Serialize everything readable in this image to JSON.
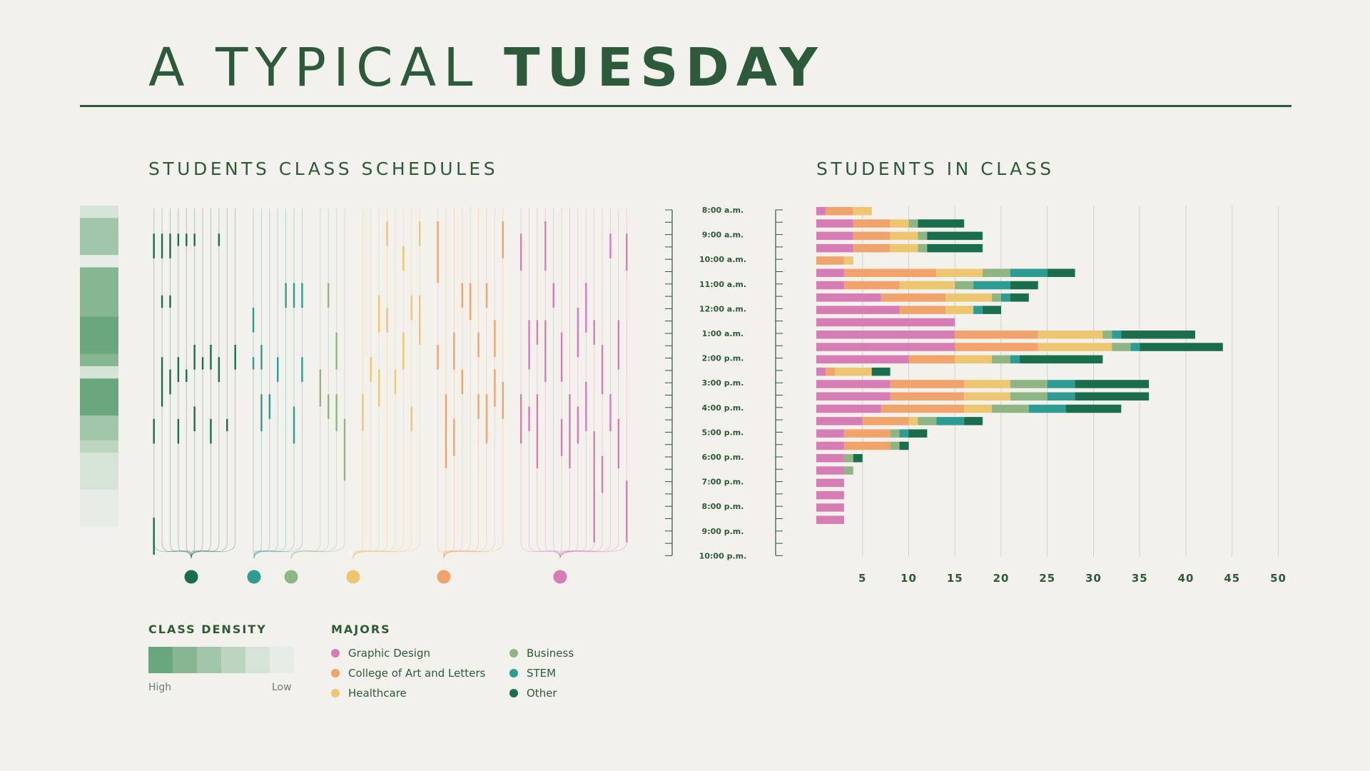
{
  "title": {
    "light": "A TYPICAL",
    "bold": "TUESDAY"
  },
  "sections": {
    "schedules": "STUDENTS CLASS SCHEDULES",
    "in_class": "STUDENTS IN CLASS"
  },
  "legend": {
    "density": {
      "title": "CLASS DENSITY",
      "high": "High",
      "low": "Low",
      "colors": [
        "#6aa67e",
        "#86b692",
        "#a2c6aa",
        "#bcd5c0",
        "#d5e4d6",
        "#e7ede6"
      ]
    },
    "majors": {
      "title": "MAJORS",
      "items": [
        {
          "label": "Graphic Design",
          "color": "#d67db6"
        },
        {
          "label": "College of Art and Letters",
          "color": "#f0a46c"
        },
        {
          "label": "Healthcare",
          "color": "#ecc670"
        },
        {
          "label": "Business",
          "color": "#8fb584"
        },
        {
          "label": "STEM",
          "color": "#2e9c92"
        },
        {
          "label": "Other",
          "color": "#1a6e4c"
        }
      ]
    }
  },
  "chart_data": [
    {
      "type": "bar",
      "orientation": "horizontal",
      "stacked": true,
      "title": "STUDENTS IN CLASS",
      "time_labels": [
        "8:00 a.m.",
        "9:00 a.m.",
        "10:00 a.m.",
        "11:00 a.m.",
        "12:00 a.m.",
        "1:00 a.m.",
        "2:00 p.m.",
        "3:00 p.m.",
        "4:00 p.m.",
        "5:00 p.m.",
        "6:00 p.m.",
        "7:00 p.m.",
        "8:00 p.m.",
        "9:00 p.m.",
        "10:00 p.m."
      ],
      "categories": [
        "8:00",
        "8:30",
        "9:00",
        "9:30",
        "10:00",
        "10:30",
        "11:00",
        "11:30",
        "12:00",
        "12:30",
        "1:00",
        "1:30",
        "2:00",
        "2:30",
        "3:00",
        "3:30",
        "4:00",
        "4:30",
        "5:00",
        "5:30",
        "6:00",
        "6:30",
        "7:00",
        "7:30",
        "8:00",
        "8:30"
      ],
      "series": [
        {
          "name": "Graphic Design",
          "color": "#d67db6",
          "values": [
            1,
            4,
            4,
            4,
            0,
            3,
            3,
            7,
            9,
            15,
            15,
            15,
            10,
            1,
            8,
            8,
            7,
            5,
            3,
            3,
            3,
            3,
            3,
            3,
            3,
            3
          ]
        },
        {
          "name": "College of Art and Letters",
          "color": "#f0a46c",
          "values": [
            3,
            4,
            4,
            4,
            3,
            10,
            6,
            7,
            5,
            0,
            9,
            9,
            5,
            1,
            8,
            8,
            9,
            5,
            5,
            5,
            0,
            0,
            0,
            0,
            0,
            0
          ]
        },
        {
          "name": "Healthcare",
          "color": "#ecc670",
          "values": [
            2,
            2,
            3,
            3,
            1,
            5,
            6,
            5,
            3,
            0,
            7,
            8,
            4,
            4,
            5,
            5,
            3,
            1,
            0,
            0,
            0,
            0,
            0,
            0,
            0,
            0
          ]
        },
        {
          "name": "Business",
          "color": "#8fb584",
          "values": [
            0,
            1,
            1,
            1,
            0,
            3,
            2,
            1,
            0,
            0,
            1,
            2,
            2,
            0,
            4,
            4,
            4,
            2,
            1,
            1,
            1,
            1,
            0,
            0,
            0,
            0
          ]
        },
        {
          "name": "STEM",
          "color": "#2e9c92",
          "values": [
            0,
            0,
            0,
            0,
            0,
            4,
            4,
            1,
            1,
            0,
            1,
            1,
            1,
            0,
            3,
            3,
            4,
            3,
            1,
            0,
            0,
            0,
            0,
            0,
            0,
            0
          ]
        },
        {
          "name": "Other",
          "color": "#1a6e4c",
          "values": [
            0,
            5,
            6,
            6,
            0,
            3,
            3,
            2,
            2,
            0,
            8,
            9,
            9,
            2,
            8,
            8,
            6,
            2,
            2,
            1,
            1,
            0,
            0,
            0,
            0,
            0
          ]
        }
      ],
      "x_ticks": [
        5,
        10,
        15,
        20,
        25,
        30,
        35,
        40,
        45,
        50
      ],
      "xlim": [
        0,
        50
      ],
      "grid": true
    },
    {
      "type": "heatmap",
      "title": "STUDENTS CLASS SCHEDULES",
      "description_rows": "time slots 8:00 a.m. to 10:00 p.m., one column per student",
      "row_density": [
        2,
        4,
        4,
        4,
        1,
        5,
        5,
        5,
        5,
        6,
        6,
        6,
        5,
        2,
        6,
        6,
        6,
        4,
        4,
        3,
        2,
        2,
        2,
        1,
        1,
        1
      ],
      "groups": [
        {
          "name": "Other",
          "color": "#1a6e4c",
          "students": 11,
          "schedules": [
            [
              1,
              3,
              16,
              18,
              24,
              27
            ],
            [
              1,
              3,
              6,
              7,
              11,
              15
            ],
            [
              1,
              3,
              6,
              7,
              12,
              14
            ],
            [
              1,
              2,
              11,
              13,
              16,
              18
            ],
            [
              1,
              2,
              12,
              13
            ],
            [
              1,
              2,
              10,
              12,
              15,
              17
            ],
            [
              11,
              12
            ],
            [
              10,
              12,
              16,
              18
            ],
            [
              1,
              2,
              11,
              13
            ],
            [
              16,
              17
            ],
            [
              10,
              12
            ]
          ]
        },
        {
          "name": "STEM",
          "color": "#2e9c92",
          "students": 7,
          "schedules": [
            [
              7,
              9,
              11,
              12
            ],
            [
              10,
              12,
              14,
              17
            ],
            [
              14,
              16
            ],
            [
              11,
              13
            ],
            [
              5,
              7
            ],
            [
              5,
              7,
              15,
              18
            ],
            [
              5,
              7,
              11,
              13
            ]
          ]
        },
        {
          "name": "Business",
          "color": "#8fb584",
          "students": 4,
          "schedules": [
            [
              12,
              15
            ],
            [
              5,
              7,
              14,
              16
            ],
            [
              9,
              12,
              14,
              17
            ],
            [
              16,
              21
            ]
          ]
        },
        {
          "name": "Healthcare",
          "color": "#ecc670",
          "students": 8,
          "schedules": [
            [
              14,
              17
            ],
            [
              11,
              13
            ],
            [
              6,
              9,
              12,
              15
            ],
            [
              0,
              2,
              7,
              9
            ],
            [
              12,
              14
            ],
            [
              2,
              4,
              9,
              12
            ],
            [
              6,
              8,
              15,
              17
            ],
            [
              0,
              2,
              6,
              10
            ]
          ]
        },
        {
          "name": "College of Art and Letters",
          "color": "#f0a46c",
          "students": 9,
          "schedules": [
            [
              0,
              5,
              10,
              12
            ],
            [
              14,
              20
            ],
            [
              9,
              12,
              16,
              19
            ],
            [
              5,
              7,
              12,
              14
            ],
            [
              5,
              8
            ],
            [
              9,
              11,
              14,
              16
            ],
            [
              5,
              7,
              14,
              18
            ],
            [
              8,
              11,
              12,
              15
            ],
            [
              0,
              3,
              13,
              16
            ]
          ]
        },
        {
          "name": "Graphic Design",
          "color": "#d67db6",
          "students": 14,
          "schedules": [
            [
              1,
              4,
              14,
              18
            ],
            [
              8,
              12,
              15,
              17
            ],
            [
              8,
              10,
              14,
              20
            ],
            [
              0,
              4,
              8,
              13
            ],
            [
              5,
              7
            ],
            [
              9,
              13,
              16,
              19
            ],
            [
              14,
              20
            ],
            [
              7,
              11,
              15,
              18
            ],
            [
              5,
              9,
              13,
              17
            ],
            [
              8,
              10,
              17,
              26
            ],
            [
              10,
              14,
              19,
              22
            ],
            [
              1,
              3,
              14,
              17
            ],
            [
              8,
              12,
              16,
              20
            ],
            [
              1,
              4,
              21,
              26
            ]
          ]
        }
      ]
    }
  ]
}
